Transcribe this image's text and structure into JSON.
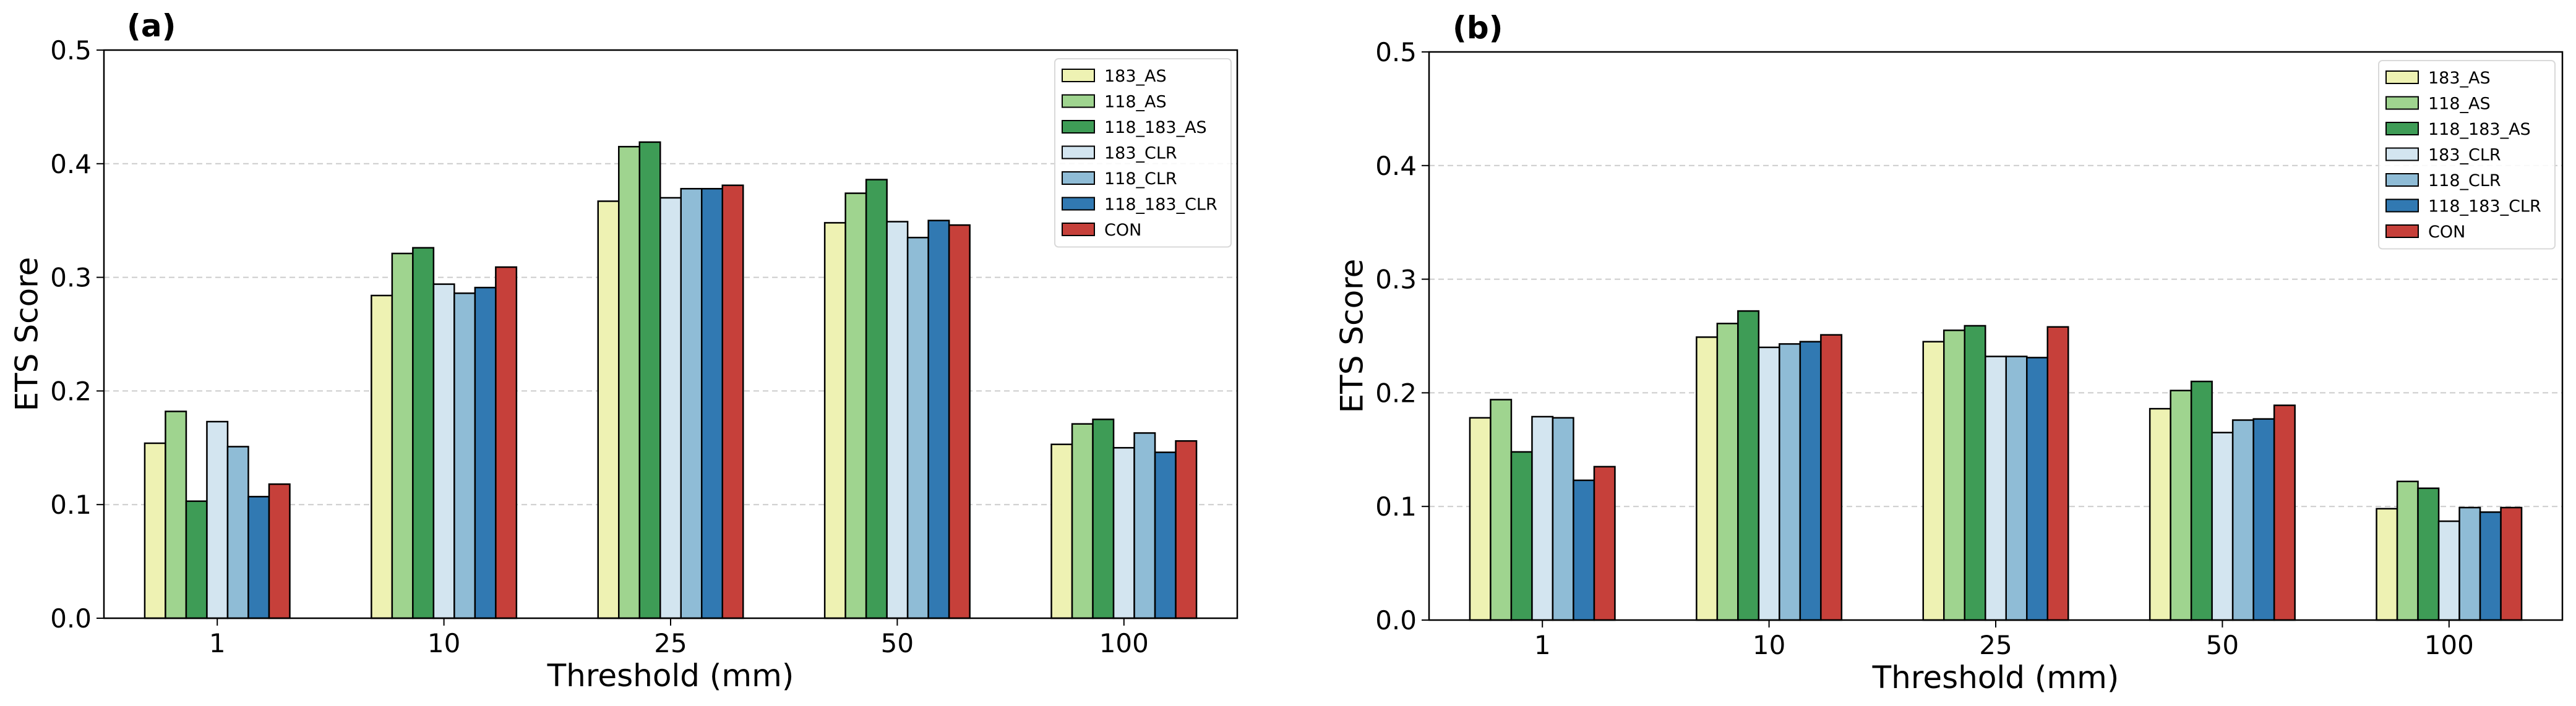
{
  "figure": {
    "background": "#ffffff"
  },
  "chart_data": [
    {
      "type": "bar",
      "panel_label": "(a)",
      "categories": [
        "1",
        "10",
        "25",
        "50",
        "100"
      ],
      "xlabel": "Threshold (mm)",
      "ylabel": "ETS Score",
      "ylim": [
        0,
        0.5
      ],
      "yticks": [
        "0.0",
        "0.1",
        "0.2",
        "0.3",
        "0.4",
        "0.5"
      ],
      "grid": "horizontal dashed",
      "legend_position": "top-right",
      "series": [
        {
          "name": "183_AS",
          "color": "#eef2b3",
          "values": [
            0.154,
            0.284,
            0.367,
            0.348,
            0.153
          ]
        },
        {
          "name": "118_AS",
          "color": "#9fd48f",
          "values": [
            0.182,
            0.321,
            0.415,
            0.374,
            0.171
          ]
        },
        {
          "name": "118_183_AS",
          "color": "#3e9c56",
          "values": [
            0.103,
            0.326,
            0.419,
            0.386,
            0.175
          ]
        },
        {
          "name": "183_CLR",
          "color": "#d3e5f0",
          "values": [
            0.173,
            0.294,
            0.37,
            0.349,
            0.15
          ]
        },
        {
          "name": "118_CLR",
          "color": "#8fbcd6",
          "values": [
            0.151,
            0.286,
            0.378,
            0.335,
            0.163
          ]
        },
        {
          "name": "118_183_CLR",
          "color": "#3179b2",
          "values": [
            0.107,
            0.291,
            0.378,
            0.35,
            0.146
          ]
        },
        {
          "name": "CON",
          "color": "#c6403a",
          "values": [
            0.118,
            0.309,
            0.381,
            0.346,
            0.156
          ]
        }
      ]
    },
    {
      "type": "bar",
      "panel_label": "(b)",
      "categories": [
        "1",
        "10",
        "25",
        "50",
        "100"
      ],
      "xlabel": "Threshold (mm)",
      "ylabel": "ETS Score",
      "ylim": [
        0,
        0.5
      ],
      "yticks": [
        "0.0",
        "0.1",
        "0.2",
        "0.3",
        "0.4",
        "0.5"
      ],
      "grid": "horizontal dashed",
      "legend_position": "top-right",
      "series": [
        {
          "name": "183_AS",
          "color": "#eef2b3",
          "values": [
            0.178,
            0.249,
            0.245,
            0.186,
            0.098
          ]
        },
        {
          "name": "118_AS",
          "color": "#9fd48f",
          "values": [
            0.194,
            0.261,
            0.255,
            0.202,
            0.122
          ]
        },
        {
          "name": "118_183_AS",
          "color": "#3e9c56",
          "values": [
            0.148,
            0.272,
            0.259,
            0.21,
            0.116
          ]
        },
        {
          "name": "183_CLR",
          "color": "#d3e5f0",
          "values": [
            0.179,
            0.24,
            0.232,
            0.165,
            0.087
          ]
        },
        {
          "name": "118_CLR",
          "color": "#8fbcd6",
          "values": [
            0.178,
            0.243,
            0.232,
            0.176,
            0.099
          ]
        },
        {
          "name": "118_183_CLR",
          "color": "#3179b2",
          "values": [
            0.123,
            0.245,
            0.231,
            0.177,
            0.095
          ]
        },
        {
          "name": "CON",
          "color": "#c6403a",
          "values": [
            0.135,
            0.251,
            0.258,
            0.189,
            0.099
          ]
        }
      ]
    }
  ]
}
